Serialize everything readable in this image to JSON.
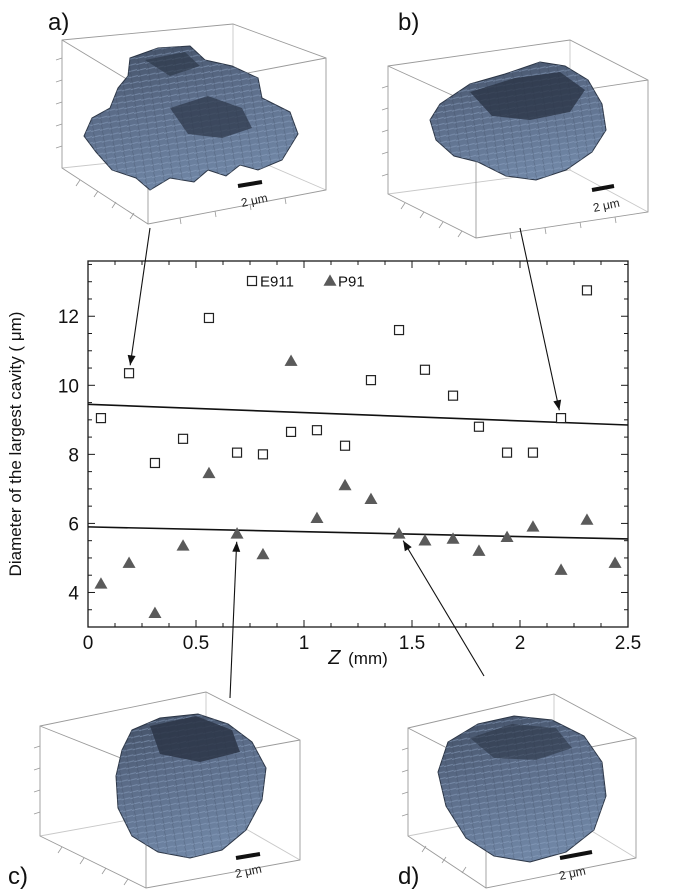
{
  "chart_data": {
    "type": "scatter",
    "xlabel_symbol": "Z",
    "xlabel_unit": "(mm)",
    "ylabel": "Diameter of the largest cavity ( μm)",
    "xlim": [
      0,
      2.5
    ],
    "ylim": [
      3.0,
      13.6
    ],
    "x_ticks": [
      "0",
      "0.5",
      "1",
      "1.5",
      "2",
      "2.5"
    ],
    "x_tick_values": [
      0,
      0.5,
      1,
      1.5,
      2,
      2.5
    ],
    "y_ticks": [
      "4",
      "6",
      "8",
      "10",
      "12"
    ],
    "y_tick_values": [
      4,
      6,
      8,
      10,
      12
    ],
    "legend": {
      "placement": "top-center"
    },
    "series": [
      {
        "name": "E911",
        "marker": "open-square",
        "color": "#222222",
        "x": [
          0.06,
          0.19,
          0.31,
          0.44,
          0.56,
          0.69,
          0.81,
          0.94,
          1.06,
          1.19,
          1.31,
          1.44,
          1.56,
          1.69,
          1.81,
          1.94,
          2.06,
          2.19,
          2.31
        ],
        "y": [
          9.05,
          10.35,
          7.75,
          8.45,
          11.95,
          8.05,
          8.0,
          8.65,
          8.7,
          8.25,
          10.15,
          11.6,
          10.45,
          9.7,
          8.8,
          8.05,
          8.05,
          9.05,
          12.75
        ]
      },
      {
        "name": "P91",
        "marker": "filled-triangle",
        "color": "#5a5a5a",
        "x": [
          0.06,
          0.19,
          0.31,
          0.44,
          0.56,
          0.69,
          0.81,
          0.94,
          1.06,
          1.19,
          1.31,
          1.44,
          1.56,
          1.69,
          1.81,
          1.94,
          2.06,
          2.19,
          2.31,
          2.44
        ],
        "y": [
          4.25,
          4.85,
          3.4,
          5.35,
          7.45,
          5.7,
          5.1,
          10.7,
          6.15,
          7.1,
          6.7,
          5.7,
          5.5,
          5.55,
          5.2,
          5.6,
          5.9,
          4.65,
          6.1,
          4.85
        ]
      }
    ],
    "trend_lines": [
      {
        "x": [
          0,
          2.5
        ],
        "y": [
          9.45,
          8.85
        ]
      },
      {
        "x": [
          0,
          2.5
        ],
        "y": [
          5.9,
          5.55
        ]
      }
    ]
  },
  "insets": [
    {
      "label": "a)",
      "scale": "2 μm",
      "points_to": {
        "x": 0.19,
        "y": 10.35
      }
    },
    {
      "label": "b)",
      "scale": "2 μm",
      "points_to": {
        "x": 2.19,
        "y": 9.05
      }
    },
    {
      "label": "c)",
      "scale": "2 μm",
      "points_to": {
        "x": 0.69,
        "y": 5.7
      }
    },
    {
      "label": "d)",
      "scale": "2 μm",
      "points_to": {
        "x": 1.44,
        "y": 5.7
      }
    }
  ],
  "colors": {
    "cavity_fill": "#55657e",
    "cavity_dark": "#39465a",
    "cavity_light": "#7d92b0",
    "box_edge": "#9a9a9a",
    "axis": "#1a1a1a"
  }
}
